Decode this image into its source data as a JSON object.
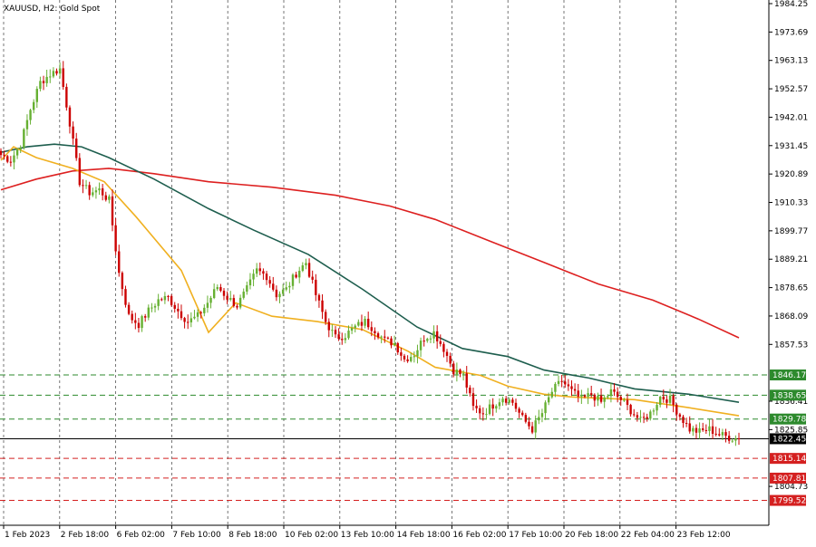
{
  "chart_data": {
    "type": "candlestick",
    "title": "XAUUSD, H2:  Gold Spot",
    "y_ticks": [
      "1984.25",
      "1973.69",
      "1963.13",
      "1952.57",
      "1942.01",
      "1931.45",
      "1920.89",
      "1910.33",
      "1899.77",
      "1889.21",
      "1878.65",
      "1868.09",
      "1857.53",
      "1836.41",
      "1825.85",
      "1804.73"
    ],
    "ylim": [
      1796.0,
      1984.25
    ],
    "x_ticks": [
      "1 Feb 2023",
      "2 Feb 18:00",
      "6 Feb 02:00",
      "7 Feb 10:00",
      "8 Feb 18:00",
      "10 Feb 02:00",
      "13 Feb 10:00",
      "14 Feb 18:00",
      "16 Feb 02:00",
      "17 Feb 10:00",
      "20 Feb 18:00",
      "22 Feb 04:00",
      "23 Feb 12:00"
    ],
    "bull_color": "#66b032",
    "bear_color": "#cc0000",
    "ma_fast_color": "#f0b020",
    "ma_mid_color": "#1e5e4e",
    "ma_slow_color": "#dd2020",
    "level_green_color": "#2d8a2d",
    "level_red_color": "#d42020",
    "current_price_color": "#000000",
    "levels": [
      {
        "price": 1846.17,
        "label": "1846.17",
        "kind": "resistance"
      },
      {
        "price": 1838.65,
        "label": "1838.65",
        "kind": "resistance"
      },
      {
        "price": 1829.78,
        "label": "1829.78",
        "kind": "resistance"
      },
      {
        "price": 1822.45,
        "label": "1822.45",
        "kind": "current"
      },
      {
        "price": 1815.14,
        "label": "1815.14",
        "kind": "support"
      },
      {
        "price": 1807.81,
        "label": "1807.81",
        "kind": "support"
      },
      {
        "price": 1799.52,
        "label": "1799.52",
        "kind": "support"
      }
    ],
    "close_anchors": [
      1928,
      1926,
      1932,
      1945,
      1955,
      1958,
      1960,
      1940,
      1918,
      1914,
      1915,
      1911,
      1884,
      1868,
      1865,
      1870,
      1874,
      1875,
      1870,
      1866,
      1868,
      1873,
      1879,
      1875,
      1872,
      1878,
      1885,
      1883,
      1876,
      1878,
      1884,
      1888,
      1876,
      1866,
      1860,
      1861,
      1864,
      1866,
      1863,
      1859,
      1858,
      1852,
      1854,
      1860,
      1862,
      1856,
      1848,
      1846,
      1834,
      1832,
      1835,
      1838,
      1836,
      1830,
      1826,
      1832,
      1840,
      1844,
      1840,
      1837,
      1839,
      1836,
      1840,
      1837,
      1833,
      1829,
      1832,
      1838,
      1837,
      1831,
      1826,
      1825,
      1826,
      1824,
      1823,
      1822.45
    ],
    "ma_fast": [
      [
        1,
        1926
      ],
      [
        15,
        1931
      ],
      [
        40,
        1927
      ],
      [
        80,
        1923
      ],
      [
        115,
        1918
      ],
      [
        150,
        1905
      ],
      [
        200,
        1885
      ],
      [
        230,
        1862
      ],
      [
        260,
        1873
      ],
      [
        300,
        1868
      ],
      [
        350,
        1866
      ],
      [
        400,
        1863
      ],
      [
        450,
        1855
      ],
      [
        480,
        1849
      ],
      [
        530,
        1846
      ],
      [
        560,
        1842
      ],
      [
        600,
        1839
      ],
      [
        630,
        1838
      ],
      [
        700,
        1837
      ],
      [
        760,
        1834
      ],
      [
        815,
        1831
      ]
    ],
    "ma_mid": [
      [
        1,
        1929
      ],
      [
        30,
        1931
      ],
      [
        60,
        1932
      ],
      [
        90,
        1931
      ],
      [
        120,
        1927
      ],
      [
        170,
        1919
      ],
      [
        230,
        1908
      ],
      [
        280,
        1900
      ],
      [
        340,
        1891
      ],
      [
        400,
        1878
      ],
      [
        460,
        1864
      ],
      [
        510,
        1856
      ],
      [
        560,
        1853
      ],
      [
        600,
        1848
      ],
      [
        650,
        1845
      ],
      [
        700,
        1841
      ],
      [
        760,
        1839
      ],
      [
        815,
        1836
      ]
    ],
    "ma_slow": [
      [
        1,
        1915
      ],
      [
        40,
        1919
      ],
      [
        80,
        1922
      ],
      [
        120,
        1923
      ],
      [
        170,
        1921
      ],
      [
        230,
        1918
      ],
      [
        300,
        1916
      ],
      [
        370,
        1913
      ],
      [
        430,
        1909
      ],
      [
        480,
        1904
      ],
      [
        540,
        1896
      ],
      [
        600,
        1888
      ],
      [
        660,
        1880
      ],
      [
        720,
        1874
      ],
      [
        770,
        1867
      ],
      [
        815,
        1860
      ]
    ]
  }
}
